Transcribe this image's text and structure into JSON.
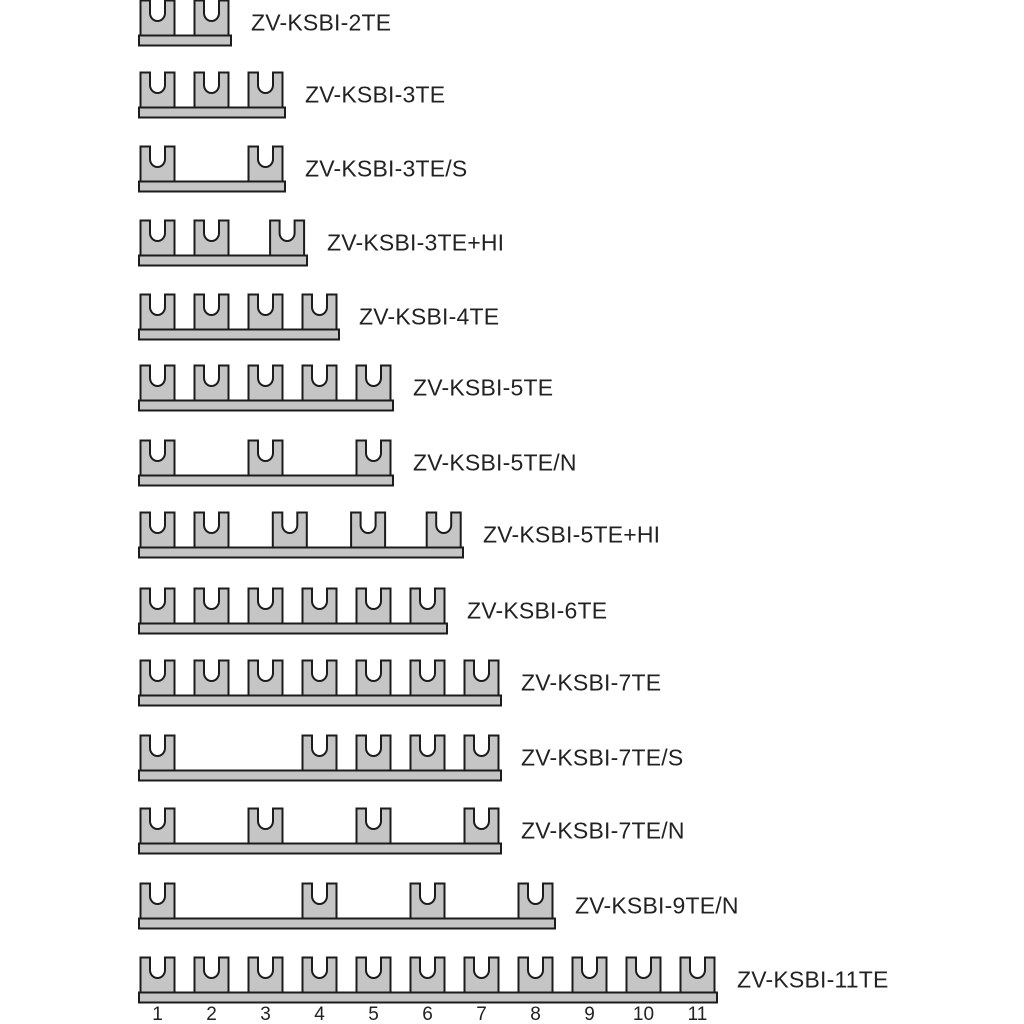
{
  "diagram": {
    "product_family": "ZV-KSBI",
    "colors": {
      "busbar_fill": "#c5c5c5",
      "busbar_outline": "#1c1c1c",
      "background": "#ffffff",
      "text": "#222222"
    },
    "rows": [
      {
        "label": "ZV-KSBI-2TE",
        "prongs_te": [
          0,
          1
        ]
      },
      {
        "label": "ZV-KSBI-3TE",
        "prongs_te": [
          0,
          1,
          2
        ]
      },
      {
        "label": "ZV-KSBI-3TE/S",
        "prongs_te": [
          0,
          2
        ]
      },
      {
        "label": "ZV-KSBI-3TE+HI",
        "prongs_te": [
          0,
          1,
          2.4
        ]
      },
      {
        "label": "ZV-KSBI-4TE",
        "prongs_te": [
          0,
          1,
          2,
          3
        ]
      },
      {
        "label": "ZV-KSBI-5TE",
        "prongs_te": [
          0,
          1,
          2,
          3,
          4
        ]
      },
      {
        "label": "ZV-KSBI-5TE/N",
        "prongs_te": [
          0,
          2,
          4
        ]
      },
      {
        "label": "ZV-KSBI-5TE+HI",
        "prongs_te": [
          0,
          1,
          2.45,
          3.9,
          5.3
        ]
      },
      {
        "label": "ZV-KSBI-6TE",
        "prongs_te": [
          0,
          1,
          2,
          3,
          4,
          5
        ]
      },
      {
        "label": "ZV-KSBI-7TE",
        "prongs_te": [
          0,
          1,
          2,
          3,
          4,
          5,
          6
        ]
      },
      {
        "label": "ZV-KSBI-7TE/S",
        "prongs_te": [
          0,
          3,
          4,
          5,
          6
        ]
      },
      {
        "label": "ZV-KSBI-7TE/N",
        "prongs_te": [
          0,
          2,
          4,
          6
        ]
      },
      {
        "label": "ZV-KSBI-9TE/N",
        "prongs_te": [
          0,
          3,
          5,
          7
        ]
      },
      {
        "label": "ZV-KSBI-11TE",
        "prongs_te": [
          0,
          1,
          2,
          3,
          4,
          5,
          6,
          7,
          8,
          9,
          10
        ],
        "numbered": true
      }
    ],
    "scale_numbers": [
      "1",
      "2",
      "3",
      "4",
      "5",
      "6",
      "7",
      "8",
      "9",
      "10",
      "11"
    ]
  }
}
